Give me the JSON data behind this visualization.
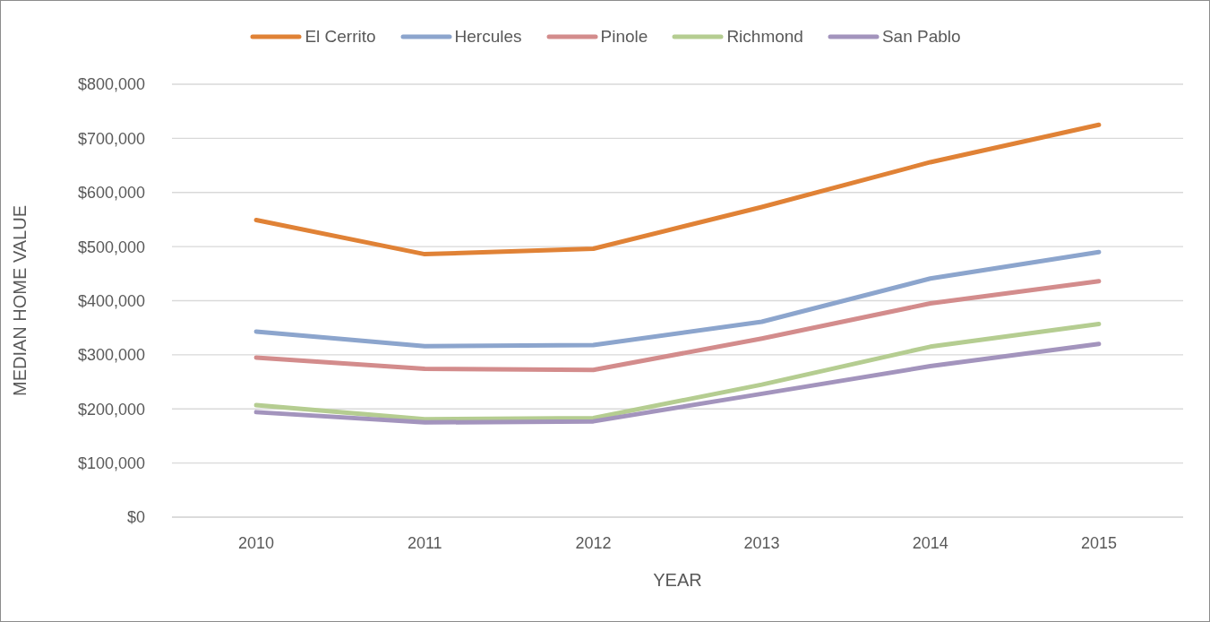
{
  "chart_data": {
    "type": "line",
    "xlabel": "YEAR",
    "ylabel": "MEDIAN HOME VALUE",
    "categories": [
      "2010",
      "2011",
      "2012",
      "2013",
      "2014",
      "2015"
    ],
    "series": [
      {
        "name": "El Cerrito",
        "color": "#e08236",
        "values": [
          549000,
          486000,
          496000,
          573000,
          656000,
          725000
        ]
      },
      {
        "name": "Hercules",
        "color": "#8ca5cd",
        "values": [
          343000,
          316000,
          318000,
          361000,
          441000,
          490000
        ]
      },
      {
        "name": "Pinole",
        "color": "#d38c8c",
        "values": [
          295000,
          274000,
          272000,
          330000,
          395000,
          436000
        ]
      },
      {
        "name": "Richmond",
        "color": "#b5cd91",
        "values": [
          207000,
          181000,
          183000,
          245000,
          315000,
          357000
        ]
      },
      {
        "name": "San Pablo",
        "color": "#a394bd",
        "values": [
          194000,
          175000,
          177000,
          228000,
          279000,
          320000
        ]
      }
    ],
    "ylim": [
      0,
      800000
    ],
    "yticks": [
      {
        "value": 0,
        "label": "$0"
      },
      {
        "value": 100000,
        "label": "$100,000"
      },
      {
        "value": 200000,
        "label": "$200,000"
      },
      {
        "value": 300000,
        "label": "$300,000"
      },
      {
        "value": 400000,
        "label": "$400,000"
      },
      {
        "value": 500000,
        "label": "$500,000"
      },
      {
        "value": 600000,
        "label": "$600,000"
      },
      {
        "value": 700000,
        "label": "$700,000"
      },
      {
        "value": 800000,
        "label": "$800,000"
      }
    ],
    "grid": "y",
    "legend": "top",
    "line_style": "solid"
  }
}
